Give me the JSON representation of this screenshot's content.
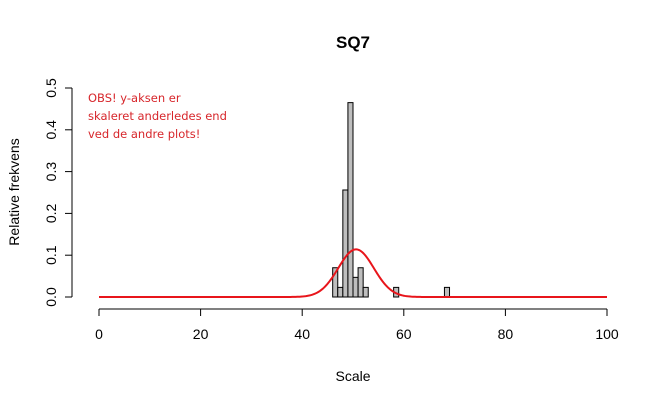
{
  "chart_data": {
    "type": "histogram",
    "title": "SQ7",
    "xlabel": "Scale",
    "ylabel": "Relative frekvens",
    "xlim": [
      0,
      100
    ],
    "ylim": [
      0,
      0.5
    ],
    "x_ticks": [
      "0",
      "20",
      "40",
      "60",
      "80",
      "100"
    ],
    "y_ticks": [
      "0.0",
      "0.1",
      "0.2",
      "0.3",
      "0.4",
      "0.5"
    ],
    "bin_width": 1,
    "bars": [
      {
        "x0": 46,
        "x1": 47,
        "value": 0.07
      },
      {
        "x0": 47,
        "x1": 48,
        "value": 0.023
      },
      {
        "x0": 48,
        "x1": 49,
        "value": 0.256
      },
      {
        "x0": 49,
        "x1": 50,
        "value": 0.465
      },
      {
        "x0": 50,
        "x1": 51,
        "value": 0.047
      },
      {
        "x0": 51,
        "x1": 52,
        "value": 0.07
      },
      {
        "x0": 52,
        "x1": 53,
        "value": 0.023
      },
      {
        "x0": 58,
        "x1": 59,
        "value": 0.023
      },
      {
        "x0": 68,
        "x1": 69,
        "value": 0.023
      }
    ],
    "bar_color": "#bebebe",
    "bar_border": "#000000",
    "curve": {
      "type": "normal-density",
      "mean": 50.6,
      "sd": 3.5,
      "x_range": [
        0,
        100
      ],
      "color": "#e8151b"
    },
    "annotation": {
      "lines": [
        "OBS! y-aksen er",
        "skaleret anderledes end",
        "ved de andre plots!"
      ],
      "color": "#d7262b"
    }
  }
}
